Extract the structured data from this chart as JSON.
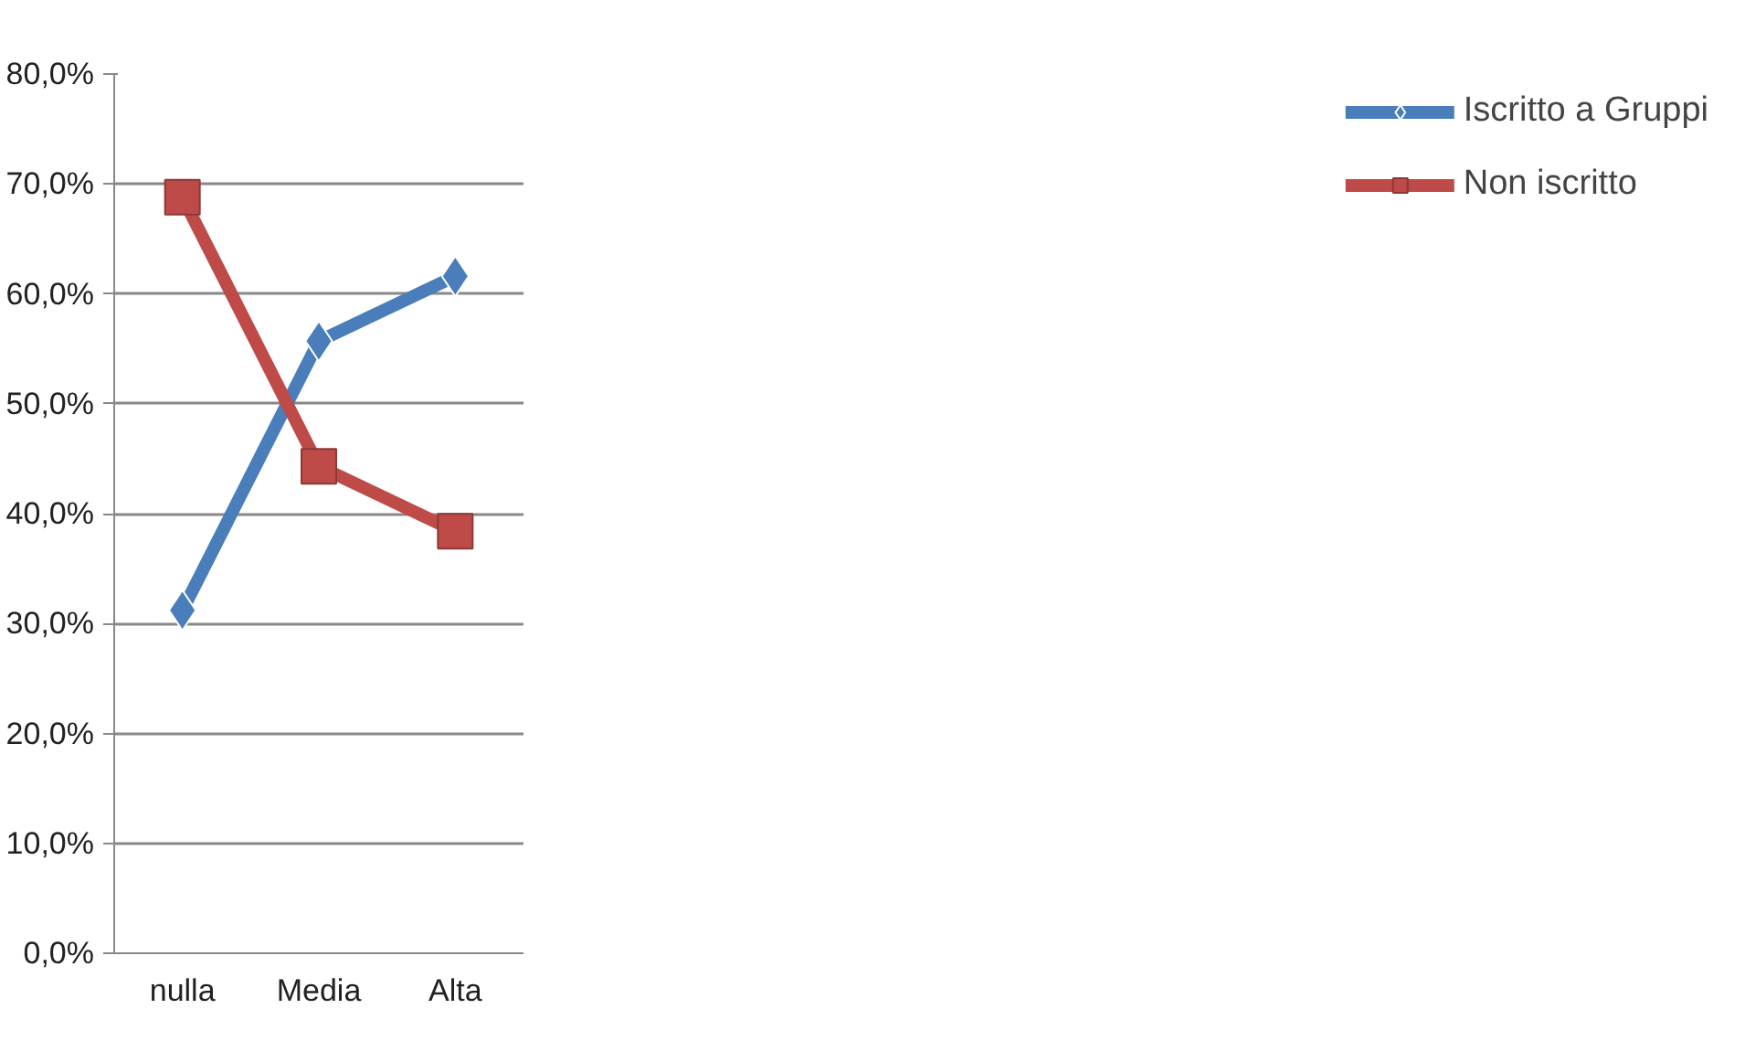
{
  "chart_data": {
    "type": "line",
    "categories": [
      "nulla",
      "Media",
      "Alta"
    ],
    "series": [
      {
        "name": "Iscritto a Gruppi",
        "color": "#4a7ebb",
        "marker": "diamond",
        "values": [
          31.2,
          55.7,
          61.6
        ]
      },
      {
        "name": "Non iscritto",
        "color": "#be4b48",
        "marker": "square",
        "values": [
          68.8,
          44.3,
          38.4
        ]
      }
    ],
    "ylim": [
      0,
      80
    ],
    "yticks": [
      {
        "value": 0,
        "label": "0,0%"
      },
      {
        "value": 10,
        "label": "10,0%"
      },
      {
        "value": 20,
        "label": "20,0%"
      },
      {
        "value": 30,
        "label": "30,0%"
      },
      {
        "value": 40,
        "label": "40,0%"
      },
      {
        "value": 50,
        "label": "50,0%"
      },
      {
        "value": 60,
        "label": "60,0%"
      },
      {
        "value": 70,
        "label": "70,0%"
      },
      {
        "value": 80,
        "label": "80,0%"
      }
    ],
    "grid": "y",
    "legend": "right",
    "line_style": "solid"
  }
}
